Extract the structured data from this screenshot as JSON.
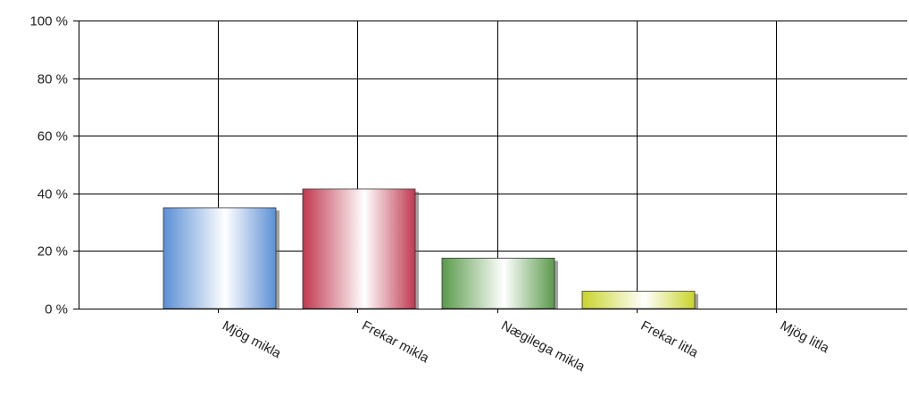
{
  "chart_data": {
    "type": "bar",
    "categories": [
      "Mjög mikla",
      "Frekar mikla",
      "Nægilega mikla",
      "Frekar litla",
      "Mjög litla"
    ],
    "values": [
      35,
      41.5,
      17.5,
      6,
      0
    ],
    "colors": [
      "#5b8fd4",
      "#c0384f",
      "#5a9a4a",
      "#c9d42a",
      "#999999"
    ],
    "ylim": [
      0,
      100
    ],
    "yticks": [
      0,
      20,
      40,
      60,
      80,
      100
    ],
    "ytick_labels": [
      "0 %",
      "20 %",
      "40 %",
      "60 %",
      "80 %",
      "100 %"
    ],
    "grid": true,
    "title": "",
    "xlabel": "",
    "ylabel": ""
  }
}
